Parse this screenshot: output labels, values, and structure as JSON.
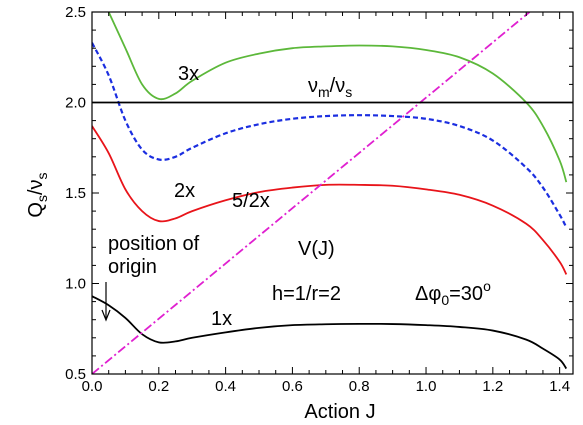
{
  "chart_data": {
    "type": "line",
    "xlabel": "Action J",
    "ylabel": "Q",
    "ylabel_sub": "s",
    "ylabel_sep": "/",
    "ylabel_nu": "ν",
    "xlim": [
      0,
      1.44
    ],
    "ylim": [
      0.5,
      2.5
    ],
    "xticks": [
      0.0,
      0.2,
      0.4,
      0.6,
      0.8,
      1.0,
      1.2,
      1.4
    ],
    "xtick_labels": [
      "0.0",
      "0.2",
      "0.4",
      "0.6",
      "0.8",
      "1.0",
      "1.2",
      "1.4"
    ],
    "yticks": [
      0.5,
      1.0,
      1.5,
      2.0,
      2.5
    ],
    "ytick_labels": [
      "0.5",
      "1.0",
      "1.5",
      "2.0",
      "2.5"
    ],
    "grid": false,
    "legend": "none",
    "series": [
      {
        "label": "1x",
        "color": "#000000",
        "style": "solid",
        "x": [
          0.0,
          0.05,
          0.1,
          0.15,
          0.2,
          0.25,
          0.3,
          0.4,
          0.5,
          0.6,
          0.7,
          0.8,
          0.9,
          1.0,
          1.1,
          1.2,
          1.3,
          1.35,
          1.4,
          1.42
        ],
        "y": [
          0.93,
          0.88,
          0.81,
          0.72,
          0.675,
          0.68,
          0.7,
          0.73,
          0.755,
          0.77,
          0.775,
          0.777,
          0.776,
          0.77,
          0.76,
          0.74,
          0.69,
          0.64,
          0.58,
          0.53
        ]
      },
      {
        "label": "2x",
        "color": "#e8141a",
        "style": "solid",
        "x": [
          0.0,
          0.05,
          0.1,
          0.15,
          0.2,
          0.25,
          0.3,
          0.4,
          0.5,
          0.6,
          0.7,
          0.8,
          0.9,
          1.0,
          1.1,
          1.2,
          1.3,
          1.35,
          1.4,
          1.42
        ],
        "y": [
          1.87,
          1.72,
          1.52,
          1.4,
          1.345,
          1.36,
          1.4,
          1.46,
          1.505,
          1.53,
          1.545,
          1.545,
          1.54,
          1.52,
          1.49,
          1.43,
          1.33,
          1.24,
          1.12,
          1.05
        ]
      },
      {
        "label": "5/2x",
        "color": "#1b2ee0",
        "style": "dashed",
        "x": [
          0.0,
          0.05,
          0.1,
          0.15,
          0.2,
          0.25,
          0.3,
          0.4,
          0.5,
          0.6,
          0.7,
          0.8,
          0.9,
          1.0,
          1.1,
          1.2,
          1.3,
          1.35,
          1.4,
          1.42
        ],
        "y": [
          2.33,
          2.15,
          1.9,
          1.74,
          1.685,
          1.7,
          1.75,
          1.83,
          1.88,
          1.91,
          1.925,
          1.93,
          1.925,
          1.91,
          1.87,
          1.79,
          1.64,
          1.53,
          1.38,
          1.31
        ]
      },
      {
        "label": "3x",
        "color": "#5cb83a",
        "style": "solid",
        "x": [
          0.05,
          0.1,
          0.15,
          0.2,
          0.25,
          0.3,
          0.4,
          0.5,
          0.6,
          0.7,
          0.8,
          0.9,
          1.0,
          1.1,
          1.2,
          1.3,
          1.35,
          1.4,
          1.42
        ],
        "y": [
          2.5,
          2.3,
          2.1,
          2.02,
          2.05,
          2.12,
          2.22,
          2.27,
          2.3,
          2.31,
          2.315,
          2.31,
          2.29,
          2.25,
          2.16,
          2.0,
          1.87,
          1.68,
          1.56
        ]
      },
      {
        "label": "V(J)",
        "color": "#e020d0",
        "style": "dashdot",
        "x": [
          0.0,
          1.31
        ],
        "y": [
          0.5,
          2.5
        ]
      },
      {
        "label": "νm/νs",
        "color": "#000000",
        "style": "solid",
        "x": [
          0.0,
          1.44
        ],
        "y": [
          2.0,
          2.0
        ]
      }
    ],
    "annotations": {
      "three_x": "3x",
      "five_half_x": "5/2x",
      "two_x": "2x",
      "one_x": "1x",
      "vj": "V(J)",
      "numsv_nu1": "ν",
      "numsv_sub1": "m",
      "numsv_sep": "/",
      "numsv_nu2": "ν",
      "numsv_sub2": "s",
      "position_line1": "position of",
      "position_line2": "origin",
      "h_ratio": "h=1/r=2",
      "phase_main": "Δφ",
      "phase_sub": "0",
      "phase_val": "=30",
      "phase_sup": "o"
    }
  }
}
